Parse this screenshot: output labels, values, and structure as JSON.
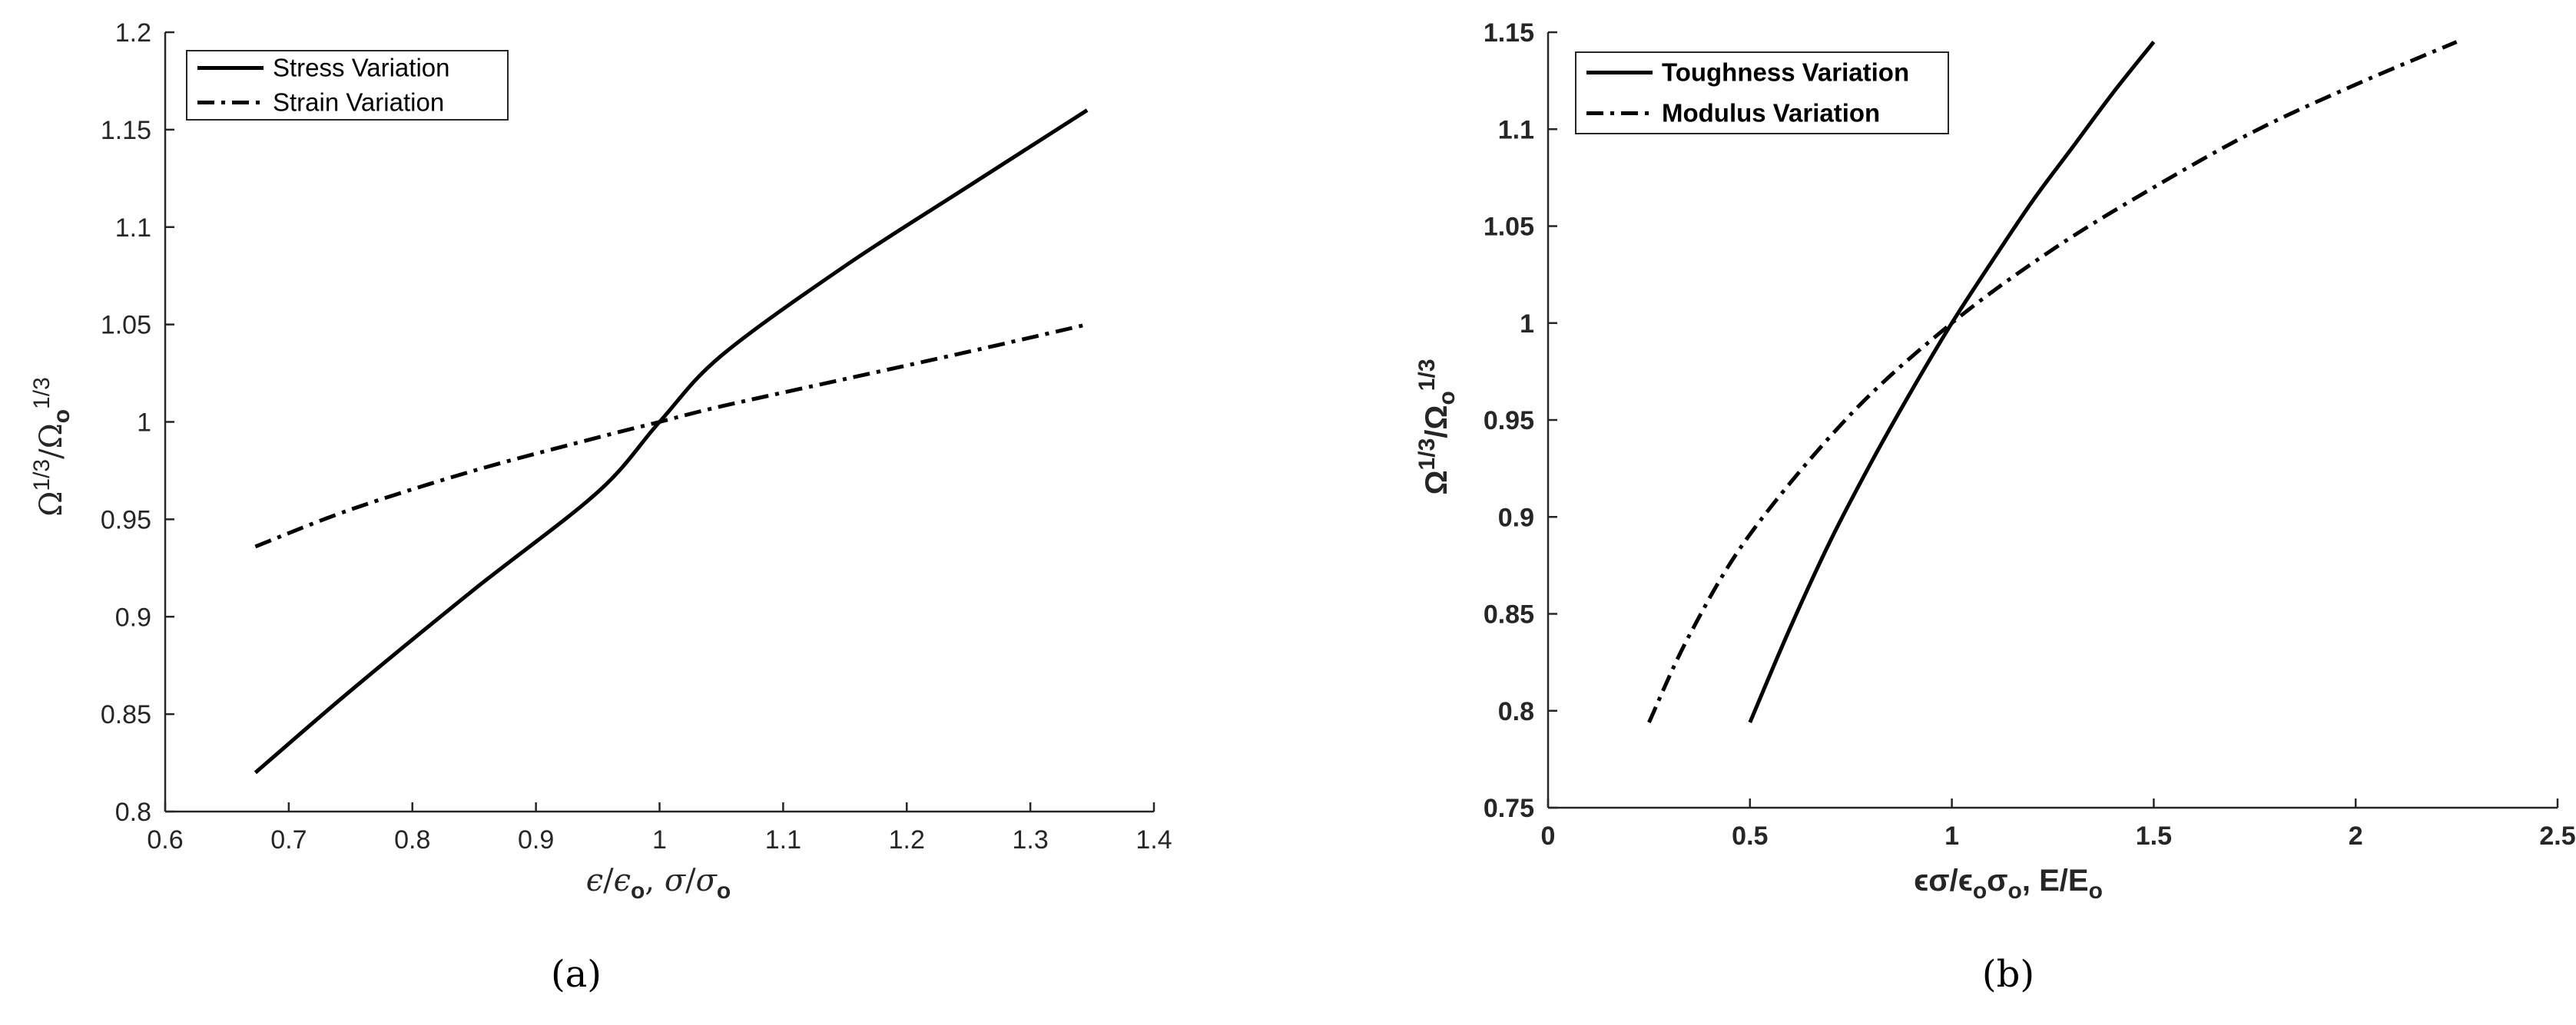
{
  "chart_data": [
    {
      "type": "line",
      "panel_label": "(a)",
      "xlabel": "ϵ/ϵo, σ/σo",
      "ylabel": "Ω1/3/Ωo1/3",
      "xlim": [
        0.6,
        1.4
      ],
      "ylim": [
        0.8,
        1.2
      ],
      "xticks": [
        "0.6",
        "0.7",
        "0.8",
        "0.9",
        "1",
        "1.1",
        "1.2",
        "1.3",
        "1.4"
      ],
      "yticks": [
        "0.8",
        "0.85",
        "0.9",
        "0.95",
        "1",
        "1.05",
        "1.1",
        "1.15",
        "1.2"
      ],
      "grid": false,
      "legend_position": "top-left",
      "series": [
        {
          "name": "Stress Variation",
          "style": "solid",
          "color": "#000000",
          "x": [
            0.673,
            0.75,
            0.85,
            0.95,
            1.0,
            1.05,
            1.15,
            1.25,
            1.346
          ],
          "y": [
            0.82,
            0.862,
            0.914,
            0.964,
            1.0,
            1.034,
            1.08,
            1.121,
            1.16
          ]
        },
        {
          "name": "Strain Variation",
          "style": "dashdot",
          "color": "#000000",
          "x": [
            0.673,
            0.75,
            0.85,
            0.95,
            1.0,
            1.05,
            1.15,
            1.25,
            1.346
          ],
          "y": [
            0.936,
            0.955,
            0.975,
            0.992,
            1.0,
            1.008,
            1.022,
            1.036,
            1.05
          ]
        }
      ]
    },
    {
      "type": "line",
      "panel_label": "(b)",
      "xlabel": "ϵσ/ϵoσo, E/Eo",
      "ylabel": "Ω1/3/Ωo1/3",
      "xlim": [
        0,
        2.5
      ],
      "ylim": [
        0.75,
        1.15
      ],
      "xticks": [
        "0",
        "0.5",
        "1",
        "1.5",
        "2",
        "2.5"
      ],
      "yticks": [
        "0.75",
        "0.8",
        "0.85",
        "0.9",
        "0.95",
        "1",
        "1.05",
        "1.1",
        "1.15"
      ],
      "grid": false,
      "legend_position": "top-left",
      "series": [
        {
          "name": "Toughness Variation",
          "style": "solid",
          "color": "#000000",
          "x": [
            0.5,
            0.6,
            0.7,
            0.8,
            0.9,
            1.0,
            1.1,
            1.2,
            1.3,
            1.4,
            1.5
          ],
          "y": [
            0.794,
            0.843,
            0.888,
            0.928,
            0.965,
            1.0,
            1.032,
            1.063,
            1.091,
            1.119,
            1.145
          ]
        },
        {
          "name": "Modulus Variation",
          "style": "dashdot",
          "color": "#000000",
          "x": [
            0.25,
            0.35,
            0.5,
            0.75,
            1.0,
            1.25,
            1.5,
            1.75,
            2.0,
            2.25
          ],
          "y": [
            0.794,
            0.839,
            0.891,
            0.953,
            1.0,
            1.038,
            1.07,
            1.099,
            1.123,
            1.145
          ]
        }
      ]
    }
  ]
}
